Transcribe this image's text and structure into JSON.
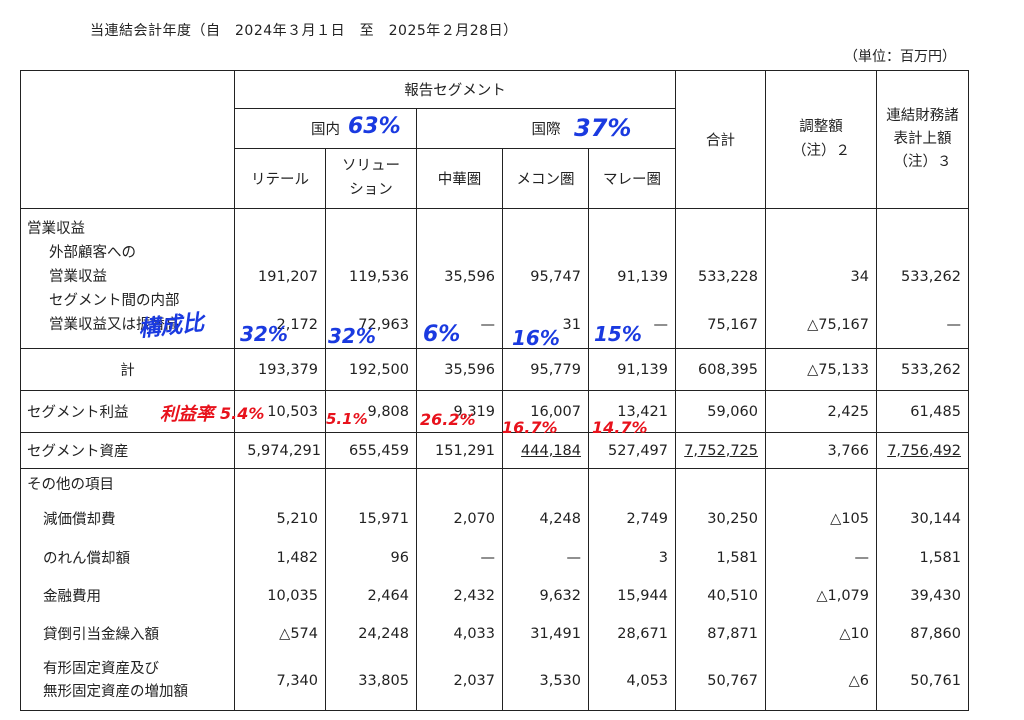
{
  "header": {
    "period": "当連結会計年度（自　2024年３月１日　至　2025年２月28日）",
    "unit": "（単位：百万円）"
  },
  "columns": {
    "reportable_segments": "報告セグメント",
    "domestic": "国内",
    "international": "国際",
    "retail": "リテール",
    "solution_a": "ソリュー",
    "solution_b": "ション",
    "greater_china": "中華圏",
    "mekong": "メコン圏",
    "malay": "マレー圏",
    "total": "合計",
    "adjustment_a": "調整額",
    "adjustment_b": "（注）２",
    "consolidated_a": "連結財務諸",
    "consolidated_b": "表計上額",
    "consolidated_c": "（注）３"
  },
  "rows": {
    "operating_revenue": "営業収益",
    "external_a": "外部顧客への",
    "external_b": "営業収益",
    "inter_a": "セグメント間の内部",
    "inter_b": "営業収益又は振替高",
    "subtotal": "計",
    "segment_profit": "セグメント利益",
    "segment_assets": "セグメント資産",
    "other_items": "その他の項目",
    "depreciation": "減価償却費",
    "goodwill": "のれん償却額",
    "finance_costs": "金融費用",
    "allowance": "貸倒引当金繰入額",
    "capex_a": "有形固定資産及び",
    "capex_b": "無形固定資産の増加額"
  },
  "values": {
    "external": [
      "191,207",
      "119,536",
      "35,596",
      "95,747",
      "91,139",
      "533,228",
      "34",
      "533,262"
    ],
    "inter": [
      "2,172",
      "72,963",
      "—",
      "31",
      "—",
      "75,167",
      "△75,167",
      "—"
    ],
    "subtotal": [
      "193,379",
      "192,500",
      "35,596",
      "95,779",
      "91,139",
      "608,395",
      "△75,133",
      "533,262"
    ],
    "segment_profit": [
      "10,503",
      "9,808",
      "9,319",
      "16,007",
      "13,421",
      "59,060",
      "2,425",
      "61,485"
    ],
    "segment_assets": [
      "5,974,291",
      "655,459",
      "151,291",
      "444,184",
      "527,497",
      "7,752,725",
      "3,766",
      "7,756,492"
    ],
    "depreciation": [
      "5,210",
      "15,971",
      "2,070",
      "4,248",
      "2,749",
      "30,250",
      "△105",
      "30,144"
    ],
    "goodwill": [
      "1,482",
      "96",
      "—",
      "—",
      "3",
      "1,581",
      "—",
      "1,581"
    ],
    "finance_costs": [
      "10,035",
      "2,464",
      "2,432",
      "9,632",
      "15,944",
      "40,510",
      "△1,079",
      "39,430"
    ],
    "allowance": [
      "△574",
      "24,248",
      "4,033",
      "31,491",
      "28,671",
      "87,871",
      "△10",
      "87,860"
    ],
    "capex": [
      "7,340",
      "33,805",
      "2,037",
      "3,530",
      "4,053",
      "50,767",
      "△6",
      "50,761"
    ]
  },
  "annotations": {
    "domestic_share": "63%",
    "international_share": "37%",
    "composition_label": "構成比",
    "share_retail": "32%",
    "share_solution": "32%",
    "share_china": "6%",
    "share_mekong": "16%",
    "share_malay": "15%",
    "margin_label": "利益率",
    "margin_retail": "5.4%",
    "margin_solution": "5.1%",
    "margin_china": "26.2%",
    "margin_mekong": "16.7%",
    "margin_malay": "14.7%"
  },
  "colors": {
    "annotation_blue": "#1a3ae0",
    "annotation_red": "#e8121c"
  }
}
